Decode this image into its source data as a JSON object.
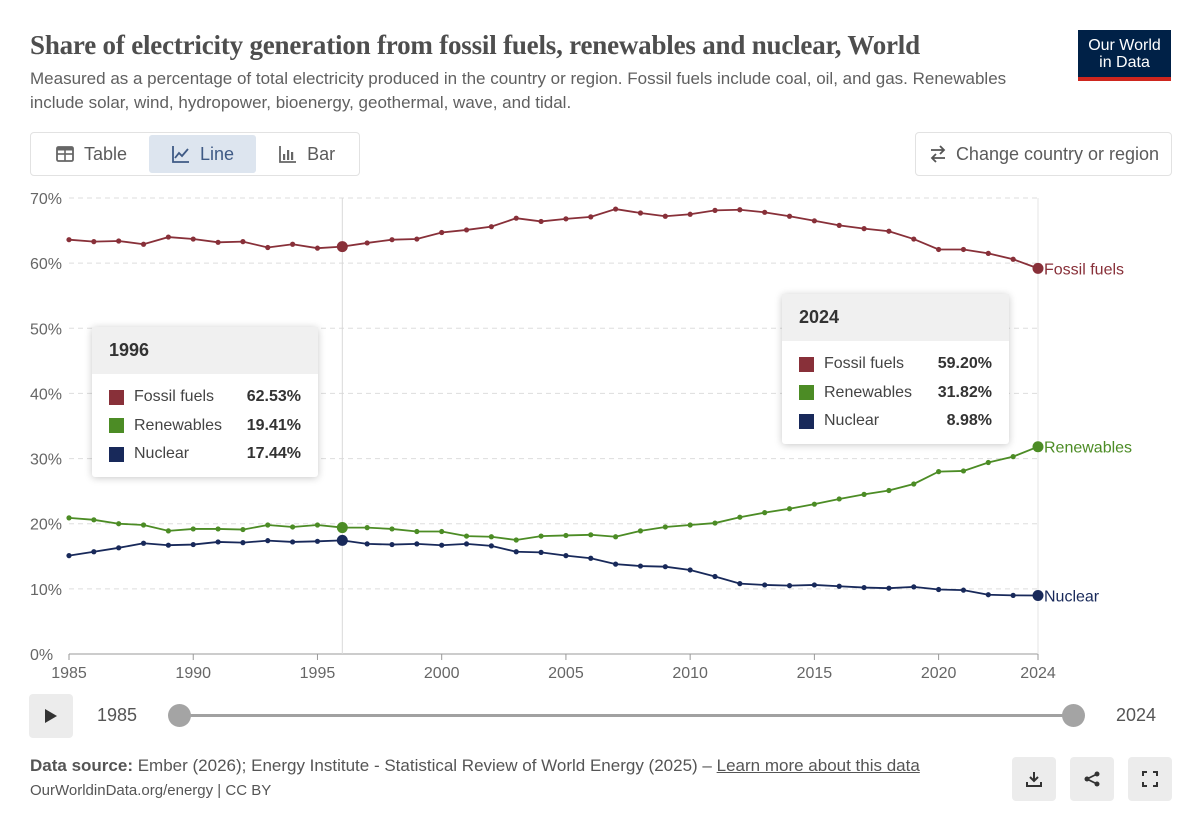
{
  "header": {
    "title": "Share of electricity generation from fossil fuels, renewables and nuclear, World",
    "subtitle": "Measured as a percentage of total electricity produced in the country or region. Fossil fuels include coal, oil, and gas. Renewables include solar, wind, hydropower, bioenergy, geothermal, wave, and tidal.",
    "logo_line1": "Our World",
    "logo_line2": "in Data"
  },
  "controls": {
    "tabs": [
      {
        "label": "Table",
        "icon": "table-icon",
        "active": false
      },
      {
        "label": "Line",
        "icon": "line-chart-icon",
        "active": true
      },
      {
        "label": "Bar",
        "icon": "bar-chart-icon",
        "active": false
      }
    ],
    "change_label": "Change country or region"
  },
  "colors": {
    "fossil": "#883039",
    "renewables": "#4c8c25",
    "nuclear": "#18295a",
    "grid": "#dddddd"
  },
  "chart_data": {
    "type": "line",
    "title": "Share of electricity generation from fossil fuels, renewables and nuclear, World",
    "xlabel": "",
    "ylabel": "",
    "xlim": [
      1985,
      2024
    ],
    "ylim": [
      0,
      70
    ],
    "x": [
      1985,
      1986,
      1987,
      1988,
      1989,
      1990,
      1991,
      1992,
      1993,
      1994,
      1995,
      1996,
      1997,
      1998,
      1999,
      2000,
      2001,
      2002,
      2003,
      2004,
      2005,
      2006,
      2007,
      2008,
      2009,
      2010,
      2011,
      2012,
      2013,
      2014,
      2015,
      2016,
      2017,
      2018,
      2019,
      2020,
      2021,
      2022,
      2023,
      2024
    ],
    "x_ticks": [
      1985,
      1990,
      1995,
      2000,
      2005,
      2010,
      2015,
      2020,
      2024
    ],
    "y_ticks": [
      0,
      10,
      20,
      30,
      40,
      50,
      60,
      70
    ],
    "y_tick_labels": [
      "0%",
      "10%",
      "20%",
      "30%",
      "40%",
      "50%",
      "60%",
      "70%"
    ],
    "grid": true,
    "hover_year": 1996,
    "series": [
      {
        "name": "Fossil fuels",
        "color": "#883039",
        "end_label": "Fossil fuels",
        "values": [
          63.6,
          63.3,
          63.4,
          62.9,
          64.0,
          63.7,
          63.2,
          63.3,
          62.4,
          62.9,
          62.3,
          62.53,
          63.1,
          63.6,
          63.7,
          64.7,
          65.1,
          65.6,
          66.9,
          66.4,
          66.8,
          67.1,
          68.3,
          67.7,
          67.2,
          67.5,
          68.1,
          68.2,
          67.8,
          67.2,
          66.5,
          65.8,
          65.3,
          64.9,
          63.7,
          62.1,
          62.1,
          61.5,
          60.6,
          59.2
        ]
      },
      {
        "name": "Renewables",
        "color": "#4c8c25",
        "end_label": "Renewables",
        "values": [
          20.9,
          20.6,
          20.0,
          19.8,
          18.9,
          19.2,
          19.2,
          19.1,
          19.8,
          19.5,
          19.8,
          19.41,
          19.4,
          19.2,
          18.8,
          18.8,
          18.1,
          18.0,
          17.5,
          18.1,
          18.2,
          18.3,
          18.0,
          18.9,
          19.5,
          19.8,
          20.1,
          21.0,
          21.7,
          22.3,
          23.0,
          23.8,
          24.5,
          25.1,
          26.1,
          28.0,
          28.1,
          29.4,
          30.3,
          31.82
        ]
      },
      {
        "name": "Nuclear",
        "color": "#18295a",
        "end_label": "Nuclear",
        "values": [
          15.1,
          15.7,
          16.3,
          17.0,
          16.7,
          16.8,
          17.2,
          17.1,
          17.4,
          17.2,
          17.3,
          17.44,
          16.9,
          16.8,
          16.9,
          16.7,
          16.9,
          16.6,
          15.7,
          15.6,
          15.1,
          14.7,
          13.8,
          13.5,
          13.4,
          12.9,
          11.9,
          10.8,
          10.6,
          10.5,
          10.6,
          10.4,
          10.2,
          10.1,
          10.3,
          9.9,
          9.8,
          9.1,
          9.0,
          8.98
        ]
      }
    ]
  },
  "tooltip_left": {
    "year": "1996",
    "rows": [
      {
        "name": "Fossil fuels",
        "value": "62.53%",
        "color": "#883039"
      },
      {
        "name": "Renewables",
        "value": "19.41%",
        "color": "#4c8c25"
      },
      {
        "name": "Nuclear",
        "value": "17.44%",
        "color": "#18295a"
      }
    ]
  },
  "tooltip_right": {
    "year": "2024",
    "rows": [
      {
        "name": "Fossil fuels",
        "value": "59.20%",
        "color": "#883039"
      },
      {
        "name": "Renewables",
        "value": "31.82%",
        "color": "#4c8c25"
      },
      {
        "name": "Nuclear",
        "value": "8.98%",
        "color": "#18295a"
      }
    ]
  },
  "timeline": {
    "start_label": "1985",
    "end_label": "2024",
    "start_value": 1985,
    "end_value": 2024
  },
  "footer": {
    "source_label": "Data source:",
    "source_text": "Ember (2026); Energy Institute - Statistical Review of World Energy (2025) –",
    "learn_more": "Learn more about this data",
    "url": "OurWorldinData.org/energy | CC BY"
  }
}
